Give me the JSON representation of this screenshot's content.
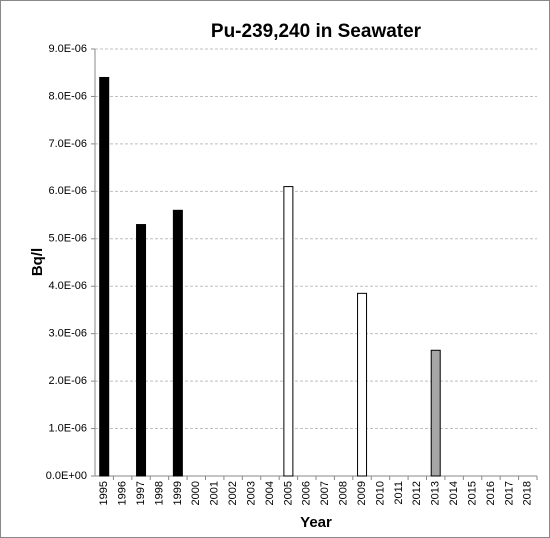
{
  "chart_data": {
    "type": "bar",
    "title": "Pu-239,240 in Seawater",
    "x_label": "Year",
    "y_label": "Bq/l",
    "categories": [
      "1995",
      "1996",
      "1997",
      "1998",
      "1999",
      "2000",
      "2001",
      "2002",
      "2003",
      "2004",
      "2005",
      "2006",
      "2007",
      "2008",
      "2009",
      "2010",
      "2011",
      "2012",
      "2013",
      "2014",
      "2015",
      "2016",
      "2017",
      "2018"
    ],
    "values": [
      8.4e-06,
      null,
      5.3e-06,
      null,
      5.6e-06,
      null,
      null,
      null,
      null,
      null,
      6.1e-06,
      null,
      null,
      null,
      3.85e-06,
      null,
      null,
      null,
      2.65e-06,
      null,
      null,
      null,
      null,
      null
    ],
    "colors": [
      "#000000",
      null,
      "#000000",
      null,
      "#000000",
      null,
      null,
      null,
      null,
      null,
      "#ffffff",
      null,
      null,
      null,
      "#ffffff",
      null,
      null,
      null,
      "#a6a6a6",
      null,
      null,
      null,
      null,
      null
    ],
    "ylim": [
      0,
      9e-06
    ],
    "yticks": [
      {
        "value": 0,
        "label": "0.0E+00"
      },
      {
        "value": 1e-06,
        "label": "1.0E-06"
      },
      {
        "value": 2e-06,
        "label": "2.0E-06"
      },
      {
        "value": 3e-06,
        "label": "3.0E-06"
      },
      {
        "value": 4e-06,
        "label": "4.0E-06"
      },
      {
        "value": 5e-06,
        "label": "5.0E-06"
      },
      {
        "value": 6e-06,
        "label": "6.0E-06"
      },
      {
        "value": 7e-06,
        "label": "7.0E-06"
      },
      {
        "value": 8e-06,
        "label": "8.0E-06"
      },
      {
        "value": 9e-06,
        "label": "9.0E-06"
      }
    ],
    "grid": true
  }
}
